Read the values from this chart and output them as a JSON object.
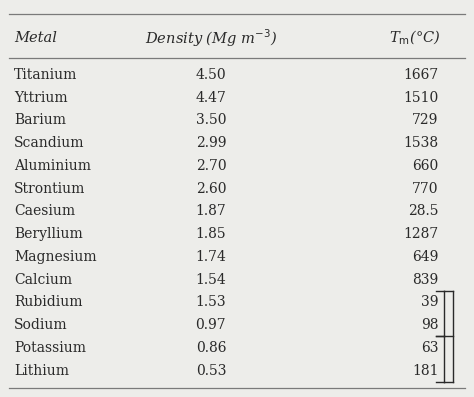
{
  "col_headers": [
    "Metal",
    "Density (Mg m⁻³)",
    "Tₘ(°C)"
  ],
  "rows": [
    [
      "Titanium",
      "4.50",
      "1667"
    ],
    [
      "Yttrium",
      "4.47",
      "1510"
    ],
    [
      "Barium",
      "3.50",
      "729"
    ],
    [
      "Scandium",
      "2.99",
      "1538"
    ],
    [
      "Aluminium",
      "2.70",
      "660"
    ],
    [
      "Strontium",
      "2.60",
      "770"
    ],
    [
      "Caesium",
      "1.87",
      "28.5"
    ],
    [
      "Beryllium",
      "1.85",
      "1287"
    ],
    [
      "Magnesium",
      "1.74",
      "649"
    ],
    [
      "Calcium",
      "1.54",
      "839"
    ],
    [
      "Rubidium",
      "1.53",
      "39"
    ],
    [
      "Sodium",
      "0.97",
      "98"
    ],
    [
      "Potassium",
      "0.86",
      "63"
    ],
    [
      "Lithium",
      "0.53",
      "181"
    ]
  ],
  "bracket_rows": [
    10,
    11,
    12,
    13
  ],
  "bg_color": "#ededea",
  "text_color": "#2a2a2a",
  "line_color": "#7a7a7a",
  "header_fontsize": 10.5,
  "data_fontsize": 10.0,
  "fig_width": 4.74,
  "fig_height": 3.97
}
